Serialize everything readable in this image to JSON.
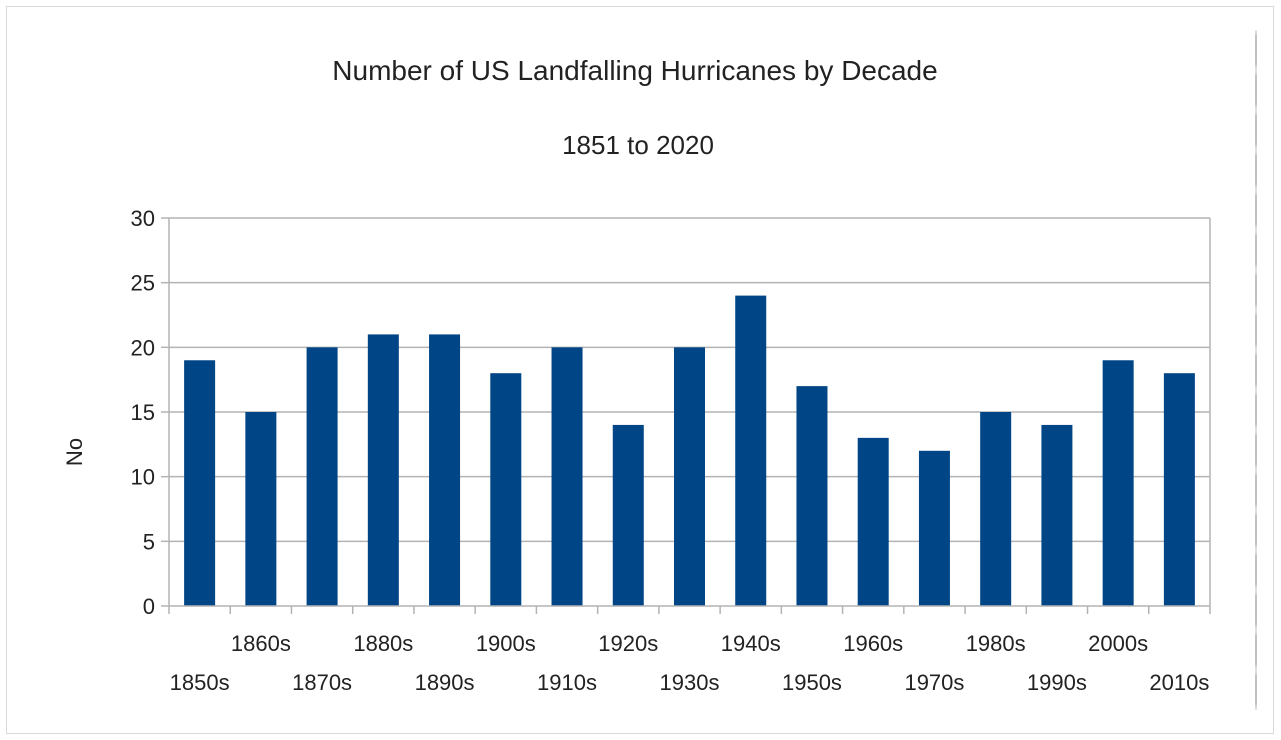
{
  "chart_data": {
    "type": "bar",
    "title": "Number of US Landfalling Hurricanes by Decade",
    "subtitle": "1851 to 2020",
    "xlabel": "",
    "ylabel": "No",
    "ylim": [
      0,
      30
    ],
    "yticks": [
      0,
      5,
      10,
      15,
      20,
      25,
      30
    ],
    "grid": true,
    "bar_color": "#004586",
    "categories": [
      "1850s",
      "1860s",
      "1870s",
      "1880s",
      "1890s",
      "1900s",
      "1910s",
      "1920s",
      "1930s",
      "1940s",
      "1950s",
      "1960s",
      "1970s",
      "1980s",
      "1990s",
      "2000s",
      "2010s"
    ],
    "values": [
      19,
      15,
      20,
      21,
      21,
      18,
      20,
      14,
      20,
      24,
      17,
      13,
      12,
      15,
      14,
      19,
      18
    ]
  }
}
